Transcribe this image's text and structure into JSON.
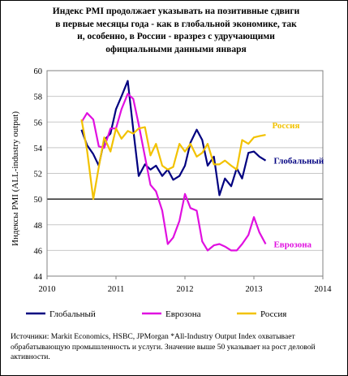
{
  "chart_data": {
    "type": "line",
    "title": "Индекс PMI продолжает указывать на позитивные сдвиги\nв первые месяцы года - как в глобальной экономике, так\nи, особенно, в России - вразрез с  удручающими\nофициальными данными января",
    "ylabel": "Индексы PMI (ALL-industry output)",
    "xlabel": "",
    "xlim": [
      2010,
      2014
    ],
    "ylim": [
      44,
      60
    ],
    "x_ticks": [
      "2010",
      "2011",
      "2012",
      "2013",
      "2014"
    ],
    "y_ticks": [
      "44",
      "46",
      "48",
      "50",
      "52",
      "54",
      "56",
      "58",
      "60"
    ],
    "reference_line": 50,
    "grid": "horizontal",
    "legend_position": "bottom",
    "series": [
      {
        "name": "Глобальный",
        "color": "#000080",
        "label_on_chart": "Глобальный",
        "x": [
          2010.5,
          2010.58,
          2010.67,
          2010.75,
          2010.83,
          2010.92,
          2011.0,
          2011.08,
          2011.17,
          2011.25,
          2011.33,
          2011.42,
          2011.5,
          2011.58,
          2011.67,
          2011.75,
          2011.83,
          2011.92,
          2012.0,
          2012.08,
          2012.17,
          2012.25,
          2012.33,
          2012.42,
          2012.5,
          2012.58,
          2012.67,
          2012.75,
          2012.83,
          2012.92,
          2013.0,
          2013.08,
          2013.17
        ],
        "values": [
          55.4,
          54.2,
          53.5,
          52.6,
          54.6,
          55.1,
          57.0,
          58.0,
          59.2,
          55.4,
          51.8,
          52.7,
          52.3,
          52.6,
          51.8,
          52.3,
          51.5,
          51.8,
          52.6,
          54.4,
          55.4,
          54.6,
          52.6,
          53.3,
          50.3,
          51.6,
          51.0,
          52.4,
          51.6,
          53.6,
          53.7,
          53.3,
          53.0
        ]
      },
      {
        "name": "Еврозона",
        "color": "#e010e0",
        "label_on_chart": "Еврозона",
        "x": [
          2010.5,
          2010.58,
          2010.67,
          2010.75,
          2010.83,
          2010.92,
          2011.0,
          2011.08,
          2011.17,
          2011.25,
          2011.33,
          2011.42,
          2011.5,
          2011.58,
          2011.67,
          2011.75,
          2011.83,
          2011.92,
          2012.0,
          2012.08,
          2012.17,
          2012.25,
          2012.33,
          2012.42,
          2012.5,
          2012.58,
          2012.67,
          2012.75,
          2012.83,
          2012.92,
          2013.0,
          2013.08,
          2013.17
        ],
        "values": [
          56.0,
          56.7,
          56.2,
          54.1,
          54.0,
          55.5,
          55.5,
          57.0,
          58.2,
          57.8,
          55.8,
          53.3,
          51.1,
          50.6,
          49.1,
          46.5,
          47.0,
          48.3,
          50.4,
          49.3,
          49.1,
          46.7,
          46.0,
          46.4,
          46.5,
          46.3,
          46.0,
          46.0,
          46.5,
          47.2,
          48.6,
          47.4,
          46.5
        ]
      },
      {
        "name": "Россия",
        "color": "#f2c200",
        "label_on_chart": "Россия",
        "x": [
          2010.5,
          2010.58,
          2010.67,
          2010.75,
          2010.83,
          2010.92,
          2011.0,
          2011.08,
          2011.17,
          2011.25,
          2011.33,
          2011.42,
          2011.5,
          2011.58,
          2011.67,
          2011.75,
          2011.83,
          2011.92,
          2012.0,
          2012.08,
          2012.17,
          2012.25,
          2012.33,
          2012.42,
          2012.5,
          2012.58,
          2012.67,
          2012.75,
          2012.83,
          2012.92,
          2013.0,
          2013.08,
          2013.17
        ],
        "values": [
          56.2,
          53.8,
          50.0,
          52.5,
          54.8,
          53.7,
          55.5,
          54.7,
          55.3,
          55.1,
          55.5,
          55.6,
          53.4,
          54.3,
          52.6,
          52.3,
          52.5,
          54.3,
          53.7,
          54.3,
          53.3,
          53.6,
          54.3,
          52.7,
          52.7,
          53.0,
          52.6,
          52.3,
          54.6,
          54.3,
          54.8,
          54.9,
          55.0
        ]
      }
    ]
  },
  "footer": {
    "text": "Источники: Markit Economics, HSBC, JPMorgan *All-Industry Output Index охватывает обрабатывающую промышленность и услуги. Значение выше 50 указывает на рост деловой активности."
  }
}
